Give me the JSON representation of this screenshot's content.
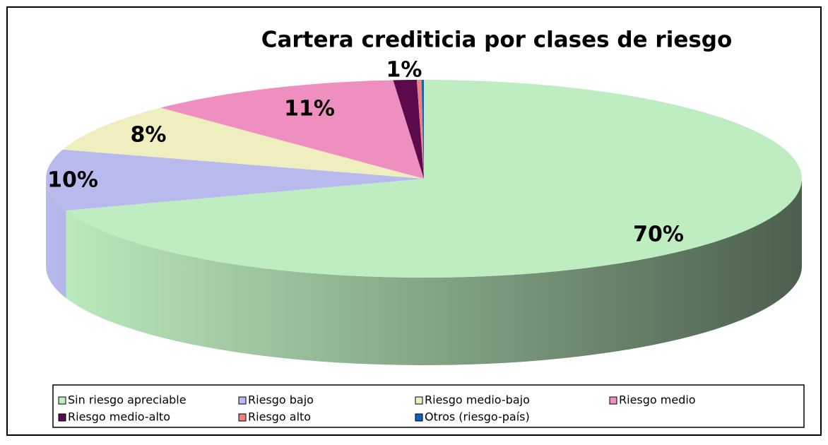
{
  "chart_data": {
    "type": "pie3d",
    "title": "Cartera crediticia por clases de riesgo",
    "categories": [
      "Sin riesgo apreciable",
      "Riesgo bajo",
      "Riesgo medio-bajo",
      "Riesgo medio",
      "Riesgo medio-alto",
      "Riesgo alto",
      "Otros (riesgo-país)"
    ],
    "values": [
      70,
      10,
      8,
      11,
      1,
      0.2,
      0.1
    ],
    "value_labels": [
      "70%",
      "10%",
      "8%",
      "11%",
      "1%",
      null,
      null
    ],
    "colors": [
      "#bdedc0",
      "#b8b9ec",
      "#efeebe",
      "#ef8fbf",
      "#5c0a4b",
      "#f08080",
      "#0b64c0"
    ],
    "legend": "bottom"
  }
}
